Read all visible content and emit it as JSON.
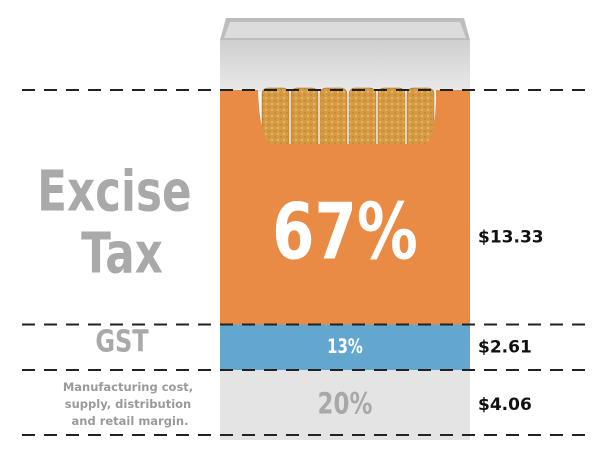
{
  "chart_data": {
    "type": "stacked-pack",
    "series": [
      {
        "name": "Excise Tax",
        "color": "#e98b45",
        "label_color": "#ffffff",
        "values": [
          67
        ],
        "value_labels": [
          "67%"
        ],
        "amount_labels": [
          "$13.33"
        ]
      },
      {
        "name": "GST",
        "color": "#63a7cf",
        "label_color": "#ffffff",
        "values": [
          13
        ],
        "value_labels": [
          "13%"
        ],
        "amount_labels": [
          "$2.61"
        ]
      },
      {
        "name": "Manufacturing cost, supply, distribution and retail margin.",
        "color": "#e4e4e4",
        "label_color": "#a8a8a8",
        "values": [
          20
        ],
        "value_labels": [
          "20%"
        ],
        "amount_labels": [
          "$4.06"
        ]
      }
    ]
  }
}
